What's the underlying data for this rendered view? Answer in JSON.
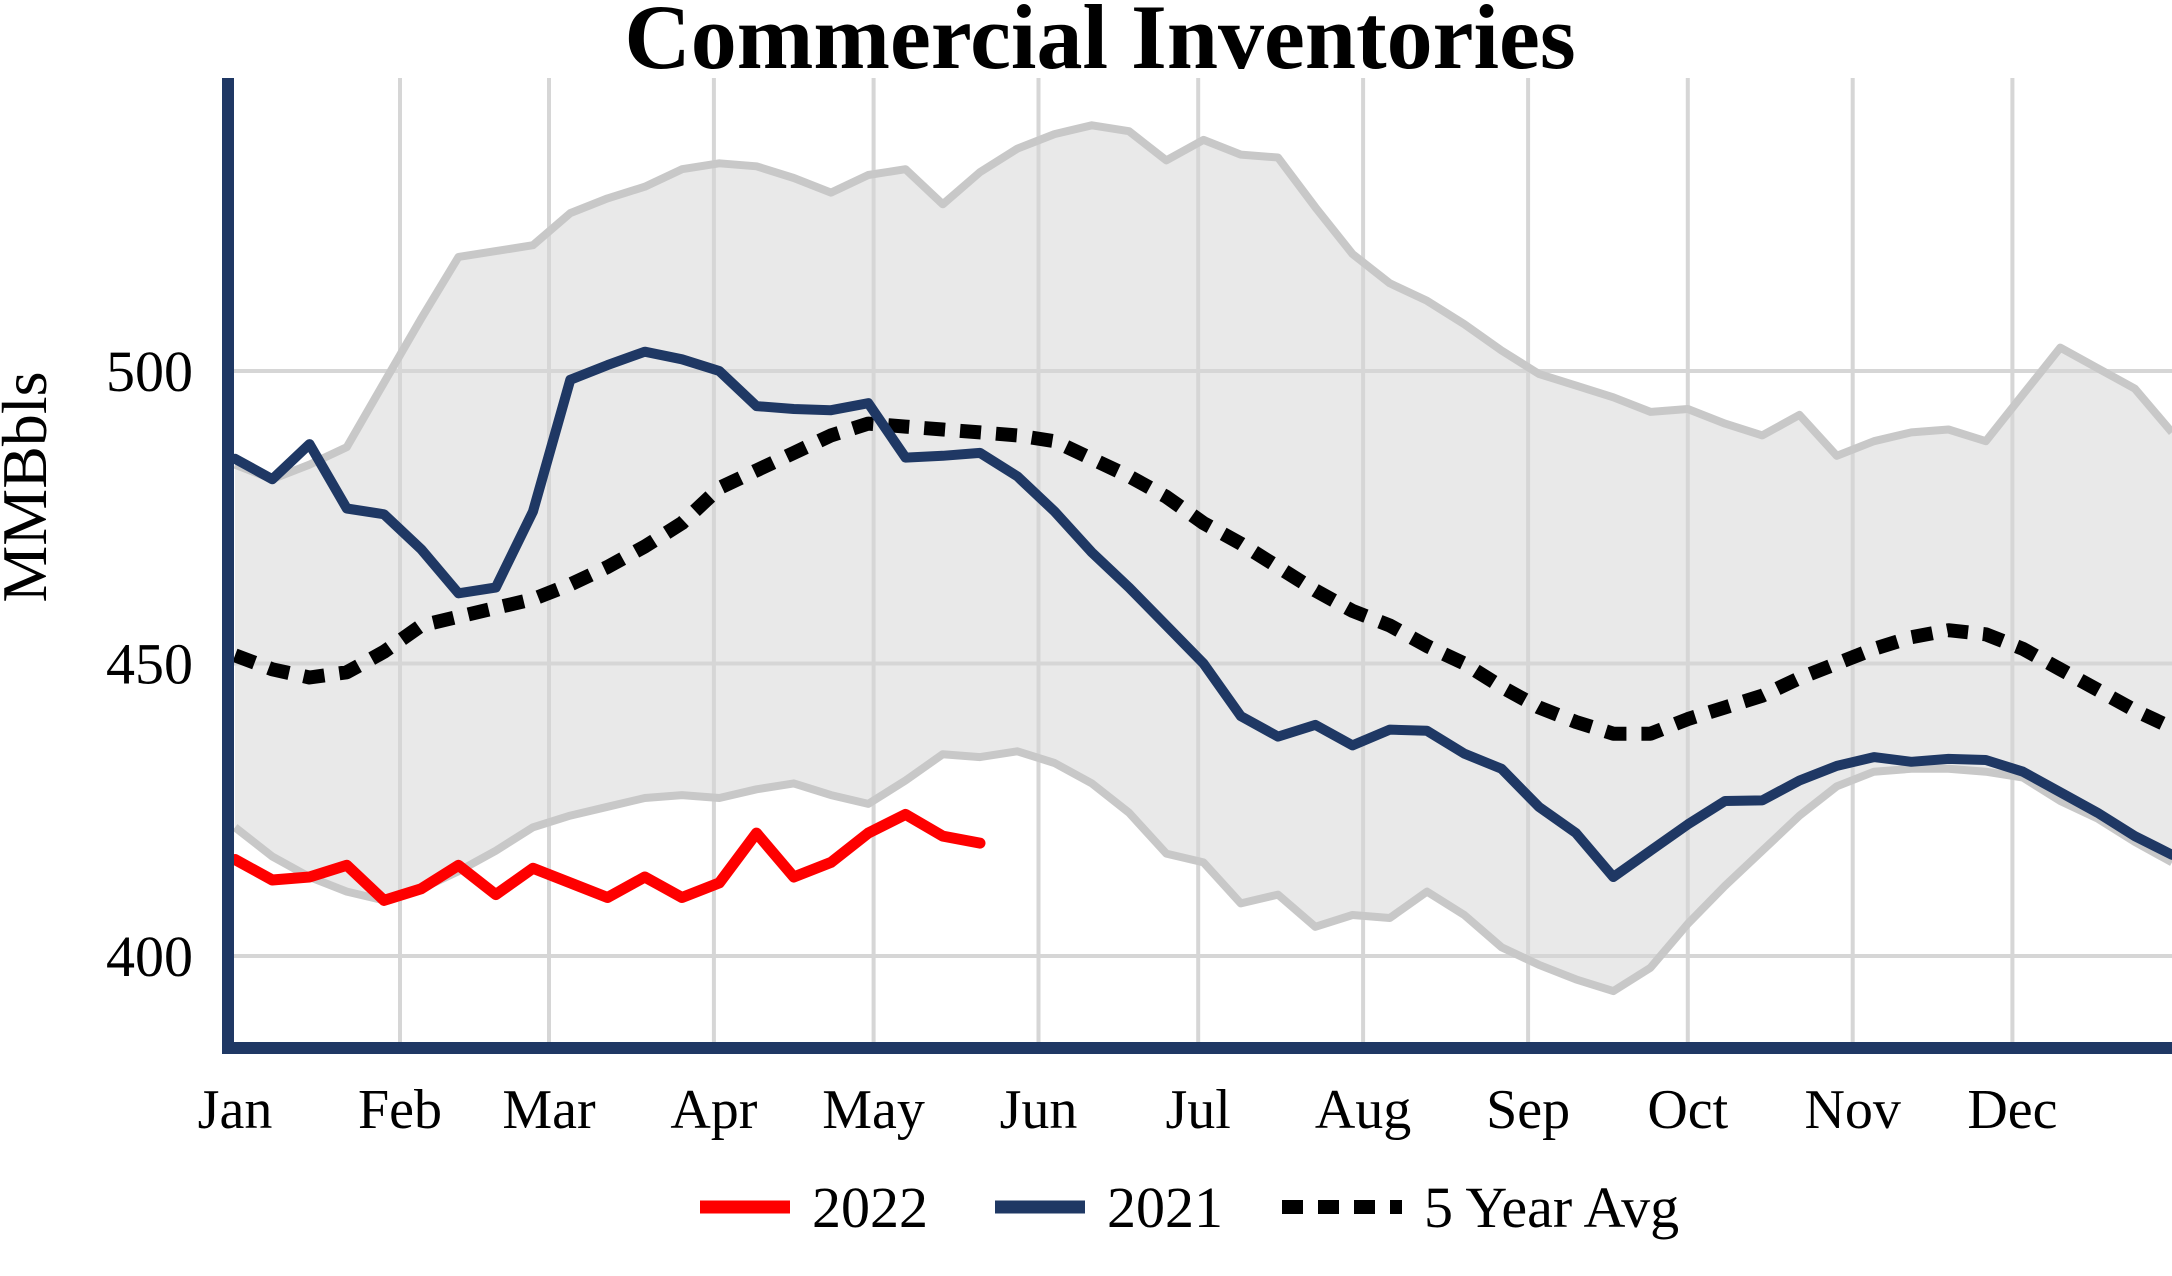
{
  "chart_data": {
    "type": "line",
    "title": "Commercial Inventories",
    "ylabel": "MMBbls",
    "yticks": [
      400,
      450,
      500
    ],
    "ylim": [
      384,
      550
    ],
    "x_tick_labels": [
      "Jan",
      "Feb",
      "Mar",
      "Apr",
      "May",
      "Jun",
      "Jul",
      "Aug",
      "Sep",
      "Oct",
      "Nov",
      "Dec"
    ],
    "month_start_days": [
      0,
      31,
      59,
      90,
      120,
      151,
      181,
      212,
      243,
      273,
      304,
      334
    ],
    "grid": true,
    "legend_position": "bottom",
    "sampling": "weekly",
    "colors": {
      "red_2022": "#fe0000",
      "navy_2021": "#1f3864",
      "avg_black": "#000000",
      "band_fill": "#e9e9e9",
      "band_edge": "#c8c8c8",
      "gridline": "#d6d6d6",
      "axis": "#1f3864"
    },
    "series": [
      {
        "name": "2022",
        "style": "solid",
        "color_key": "red_2022",
        "start_week": 0,
        "values": [
          416.5,
          413,
          413.5,
          415.5,
          409.5,
          411.5,
          415.5,
          410.5,
          415,
          412.5,
          410,
          413.5,
          410,
          412.5,
          421,
          413.5,
          416,
          421,
          424.2,
          420.5,
          419.3
        ]
      },
      {
        "name": "2021",
        "style": "solid",
        "color_key": "navy_2021",
        "start_week": 0,
        "values": [
          485,
          481.5,
          487.5,
          476.5,
          475.5,
          469.5,
          462,
          463,
          476,
          498.5,
          501,
          503.3,
          502,
          500,
          494,
          493.5,
          493.3,
          494.5,
          485.2,
          485.5,
          486,
          482,
          476,
          469,
          463,
          456.5,
          450,
          441,
          437.5,
          439.5,
          436,
          438.7,
          438.5,
          434.6,
          432,
          425.5,
          421,
          413.5,
          418,
          422.5,
          426.5,
          426.6,
          430,
          432.5,
          434,
          433.2,
          433.7,
          433.5,
          431.5,
          428,
          424.5,
          420.5,
          417.3
        ]
      },
      {
        "name": "5 Year Avg",
        "style": "dotted",
        "color_key": "avg_black",
        "start_week": 0,
        "values": [
          451.4,
          449,
          447.6,
          448.5,
          452,
          456.5,
          458,
          459.5,
          461,
          463.5,
          466.5,
          470,
          474,
          480,
          483,
          486,
          489,
          491,
          490.5,
          490,
          489.5,
          489,
          488,
          485,
          482,
          478.5,
          474,
          470.5,
          466.5,
          462.5,
          459,
          456.5,
          453,
          450,
          446,
          442.5,
          440,
          438,
          438,
          440.5,
          442.5,
          444.5,
          447.5,
          450,
          452.5,
          454.5,
          455.7,
          455,
          452.5,
          449,
          445.5,
          442,
          439
        ]
      }
    ],
    "band": {
      "name": "5-year-range-band",
      "start_week": 0,
      "upper": [
        484,
        481.5,
        484,
        487,
        498,
        509,
        519.5,
        520.5,
        521.5,
        527,
        529.5,
        531.5,
        534.5,
        535.5,
        535,
        533,
        530.5,
        533.5,
        534.5,
        528.5,
        534,
        538,
        540.5,
        542,
        541,
        536,
        539.5,
        537,
        536.5,
        528,
        520,
        515,
        512,
        508,
        503.5,
        499.5,
        497.5,
        495.5,
        493,
        493.5,
        491,
        489,
        492.5,
        485.5,
        488,
        489.5,
        490,
        488,
        496,
        504,
        500.5,
        497,
        489.5
      ],
      "lower": [
        422,
        417,
        413.5,
        411,
        409.5,
        411.5,
        414.5,
        418,
        422,
        424,
        425.5,
        427,
        427.5,
        427,
        428.5,
        429.5,
        427.5,
        426,
        430,
        434.5,
        434,
        435,
        433,
        429.5,
        424.5,
        417.5,
        416,
        409,
        410.5,
        405,
        407,
        406.5,
        411,
        407,
        401.5,
        398.5,
        396,
        394,
        398,
        405.5,
        412,
        418,
        424,
        429,
        431.5,
        432,
        432,
        431.5,
        430.5,
        426.5,
        423.5,
        419.5,
        416
      ]
    },
    "legend_items": [
      "2022",
      "2021",
      "5 Year Avg"
    ]
  }
}
